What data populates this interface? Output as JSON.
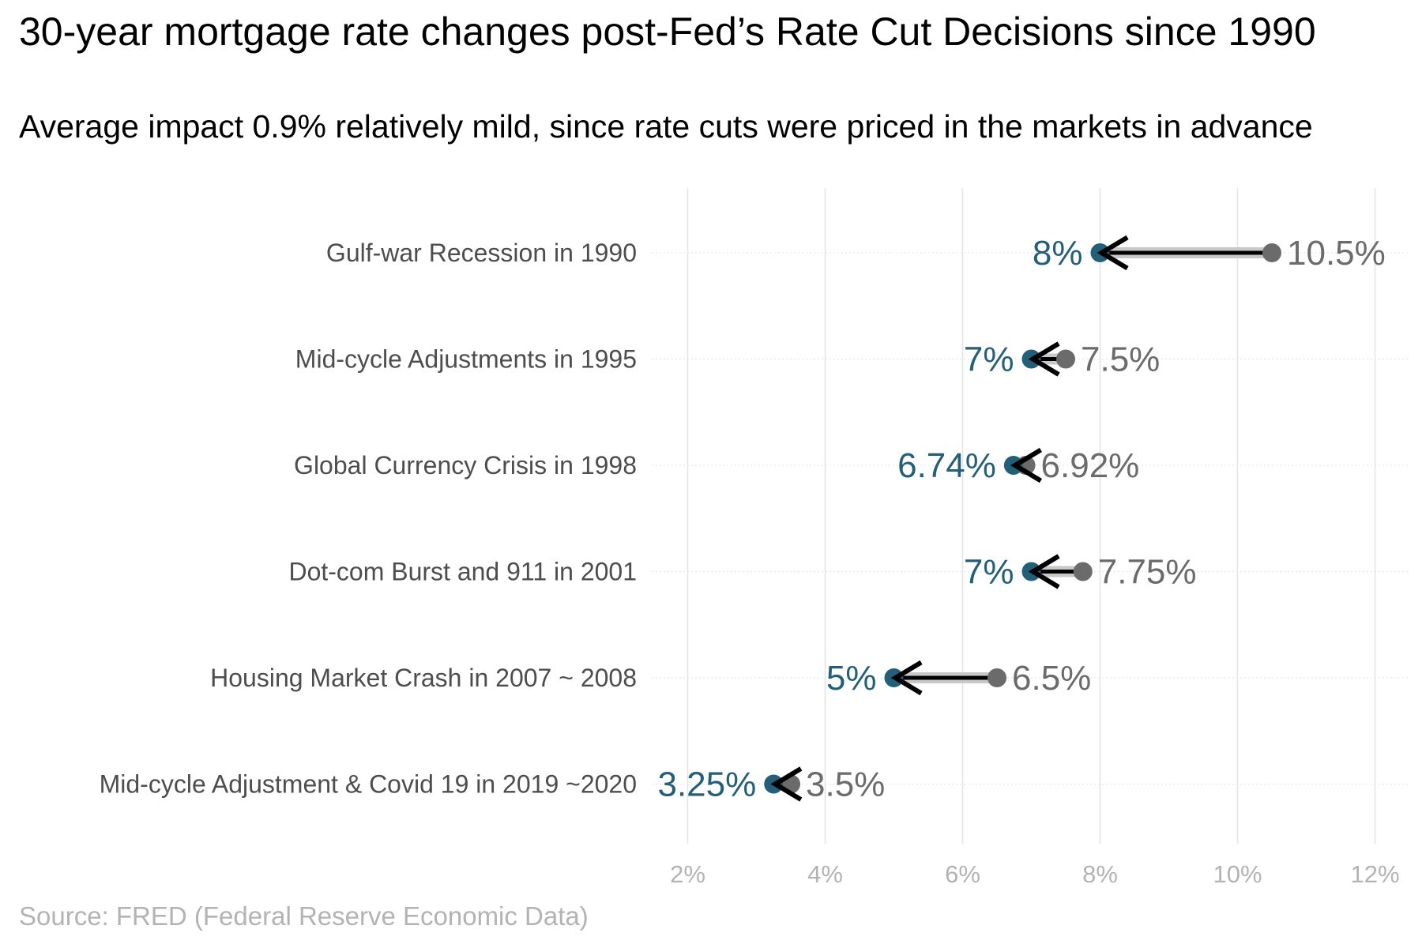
{
  "title": "30-year mortgage rate changes post-Fed’s Rate Cut Decisions since 1990",
  "subtitle": "Average impact 0.9% relatively mild, since rate cuts were priced in the markets in advance",
  "caption": "Source: FRED (Federal Reserve Economic Data)",
  "colors": {
    "after": "#235f78",
    "before": "#6b6b6b",
    "arrow": "#000000",
    "segment": "#c8c8c8"
  },
  "chart_data": {
    "type": "dumbbell",
    "title": "30-year mortgage rate changes post-Fed’s Rate Cut Decisions since 1990",
    "subtitle": "Average impact 0.9% relatively mild, since rate cuts were priced in the markets in advance",
    "xlabel": "",
    "ylabel": "",
    "xlim": [
      1,
      12.3
    ],
    "x_ticks": [
      2,
      4,
      6,
      8,
      10,
      12
    ],
    "x_tick_labels": [
      "2%",
      "4%",
      "6%",
      "8%",
      "10%",
      "12%"
    ],
    "grid": true,
    "categories": [
      "Gulf-war Recession in 1990",
      "Mid-cycle Adjustments in 1995",
      "Global Currency Crisis in 1998",
      "Dot-com Burst and 911 in 2001",
      "Housing Market Crash in 2007 ~ 2008",
      "Mid-cycle Adjustment & Covid 19 in 2019 ~2020"
    ],
    "before": [
      10.5,
      7.5,
      6.92,
      7.75,
      6.5,
      3.5
    ],
    "after": [
      8,
      7,
      6.74,
      7,
      5,
      3.25
    ],
    "before_labels": [
      "10.5%",
      "7.5%",
      "6.92%",
      "7.75%",
      "6.5%",
      "3.5%"
    ],
    "after_labels": [
      "8%",
      "7%",
      "6.74%",
      "7%",
      "5%",
      "3.25%"
    ]
  }
}
